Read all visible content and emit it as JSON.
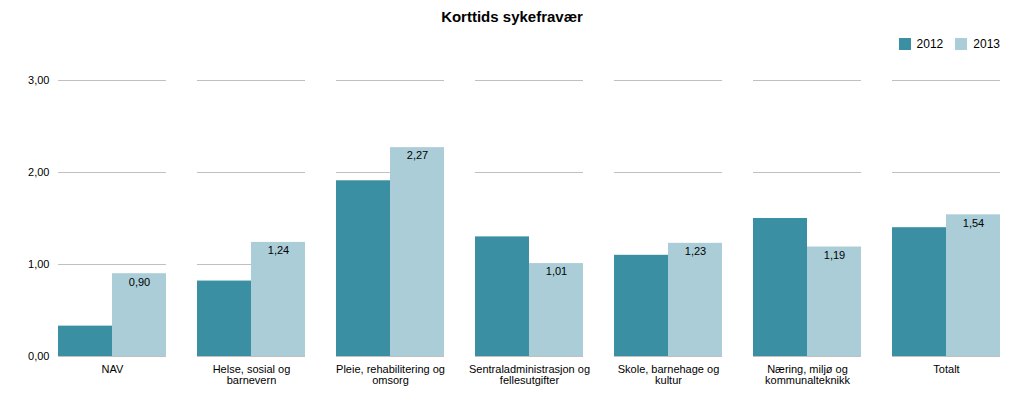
{
  "chart_data": {
    "type": "bar",
    "title": "Korttids sykefravær",
    "categories": [
      "NAV",
      "Helse, sosial og\nbarnevern",
      "Pleie, rehabilitering og\nomsorg",
      "Sentraladministrasjon og\nfellesutgifter",
      "Skole, barnehage og\nkultur",
      "Næring, miljø og\nkommunalteknikk",
      "Totalt"
    ],
    "series": [
      {
        "name": "2012",
        "color": "#3a8fa3",
        "values": [
          0.33,
          0.82,
          1.91,
          1.3,
          1.1,
          1.5,
          1.4
        ]
      },
      {
        "name": "2013",
        "color": "#aacdd8",
        "values": [
          0.9,
          1.24,
          2.27,
          1.01,
          1.23,
          1.19,
          1.54
        ],
        "value_labels": [
          "0,90",
          "1,24",
          "2,27",
          "1,01",
          "1,23",
          "1,19",
          "1,54"
        ]
      }
    ],
    "ylim": [
      0,
      3.0
    ],
    "yticks": [
      {
        "value": 0.0,
        "label": "0,00"
      },
      {
        "value": 1.0,
        "label": "1,00"
      },
      {
        "value": 2.0,
        "label": "2,00"
      },
      {
        "value": 3.0,
        "label": "3,00"
      }
    ],
    "grid": true,
    "legend": "upper right"
  }
}
